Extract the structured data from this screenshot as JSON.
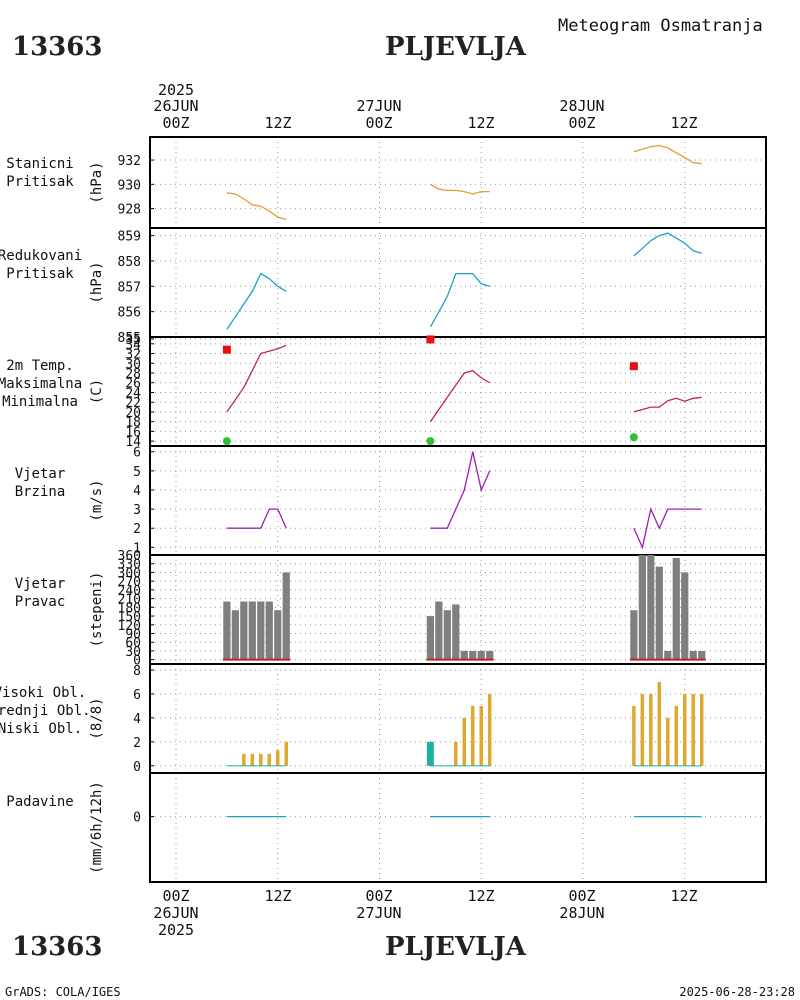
{
  "header": {
    "station_id": "13363",
    "station_name": "PLJEVLJA",
    "product_title": "Meteogram Osmatranja"
  },
  "footer": {
    "station_id": "13363",
    "station_name": "PLJEVLJA",
    "credit": "GrADS: COLA/IGES",
    "timestamp": "2025-06-28-23:28"
  },
  "time_axis": {
    "top": [
      {
        "year": "2025",
        "date": "26JUN",
        "hours": [
          "00Z",
          "12Z"
        ]
      },
      {
        "date": "27JUN",
        "hours": [
          "00Z",
          "12Z"
        ]
      },
      {
        "date": "28JUN",
        "hours": [
          "00Z",
          "12Z"
        ]
      }
    ],
    "bottom": [
      {
        "hour": "00Z",
        "date": "26JUN",
        "year": "2025"
      },
      {
        "hour": "12Z"
      },
      {
        "hour": "00Z",
        "date": "27JUN"
      },
      {
        "hour": "12Z"
      },
      {
        "hour": "00Z",
        "date": "28JUN"
      },
      {
        "hour": "12Z"
      }
    ]
  },
  "colors": {
    "station_pressure": "#e0a030",
    "reduced_pressure": "#20a0c0",
    "temperature": "#c0206a",
    "tmax": "#e81010",
    "tmin": "#30c030",
    "wind_speed": "#9b20b0",
    "wind_dir_bar": "#7f7f7f",
    "wind_dir_base": "#c02020",
    "high_cloud": "#20b0a0",
    "mid_cloud": "#30b0c0",
    "low_cloud": "#e0a830",
    "precip": "#20a0c0"
  },
  "chart_data": [
    {
      "type": "line",
      "name": "station-pressure",
      "title": "Stanicni Pritisak",
      "label_lines": [
        "Stanicni",
        "Pritisak"
      ],
      "ylabel": "(hPa)",
      "ylim": [
        926.4,
        933.9
      ],
      "yticks": [
        928,
        930,
        932
      ],
      "x_unit": "hours since 26JUN 00Z",
      "series": [
        {
          "name": "Stanicni Pritisak",
          "segments": [
            {
              "x": [
                6,
                7,
                8,
                9,
                10,
                11,
                12,
                13
              ],
              "y": [
                929.3,
                929.2,
                928.8,
                928.3,
                928.2,
                927.8,
                927.3,
                927.1
              ]
            },
            {
              "x": [
                30,
                31,
                32,
                33,
                34,
                35,
                36,
                37
              ],
              "y": [
                930.0,
                929.6,
                929.5,
                929.5,
                929.4,
                929.2,
                929.4,
                929.4
              ]
            },
            {
              "x": [
                54,
                55,
                56,
                57,
                58,
                59,
                60,
                61,
                62
              ],
              "y": [
                932.7,
                932.9,
                933.1,
                933.2,
                933.0,
                932.6,
                932.2,
                931.8,
                931.7
              ]
            }
          ]
        }
      ]
    },
    {
      "type": "line",
      "name": "reduced-pressure",
      "title": "Redukovani Pritisak",
      "label_lines": [
        "Redukovani",
        "Pritisak"
      ],
      "ylabel": "(hPa)",
      "ylim": [
        855.0,
        859.3
      ],
      "yticks": [
        855,
        856,
        857,
        858,
        859
      ],
      "ytick_labels": [
        "855",
        "856",
        "857",
        "858",
        "859"
      ],
      "x_unit": "hours since 26JUN 00Z",
      "series": [
        {
          "name": "Redukovani Pritisak",
          "segments": [
            {
              "x": [
                6,
                7,
                8,
                9,
                10,
                11,
                12,
                13
              ],
              "y": [
                855.3,
                855.8,
                856.3,
                856.8,
                857.5,
                857.3,
                857.0,
                856.8
              ]
            },
            {
              "x": [
                30,
                31,
                32,
                33,
                34,
                35,
                36,
                37
              ],
              "y": [
                855.4,
                856.0,
                856.6,
                857.5,
                857.5,
                857.5,
                857.1,
                857.0
              ]
            },
            {
              "x": [
                54,
                55,
                56,
                57,
                58,
                59,
                60,
                61,
                62
              ],
              "y": [
                858.2,
                858.5,
                858.8,
                859.0,
                859.1,
                858.9,
                858.7,
                858.4,
                858.3
              ]
            }
          ]
        }
      ]
    },
    {
      "type": "line",
      "name": "temperature",
      "title": "2m Temp. Maksimalna Minimalna",
      "label_lines": [
        "2m Temp.",
        "Maksimalna",
        "Minimalna"
      ],
      "ylabel": "(C)",
      "ylim": [
        13,
        35.4
      ],
      "yticks": [
        14,
        16,
        18,
        20,
        22,
        24,
        26,
        28,
        30,
        32,
        34,
        35
      ],
      "ytick_labels": [
        "14",
        "16",
        "18",
        "20",
        "22",
        "24",
        "26",
        "28",
        "30",
        "32",
        "34",
        "35"
      ],
      "x_unit": "hours since 26JUN 00Z",
      "series": [
        {
          "name": "2m Temp.",
          "segments": [
            {
              "x": [
                6,
                8,
                10,
                12,
                13
              ],
              "y": [
                20,
                25,
                32,
                33,
                33.7
              ]
            },
            {
              "x": [
                30,
                32,
                34,
                35,
                36,
                37
              ],
              "y": [
                18,
                23,
                28,
                28.5,
                27,
                26
              ]
            },
            {
              "x": [
                54,
                55,
                56,
                57,
                58,
                59,
                60,
                61,
                62
              ],
              "y": [
                20,
                20.5,
                21,
                21,
                22.3,
                22.8,
                22.2,
                22.8,
                23
              ]
            }
          ]
        },
        {
          "name": "Maksimalna",
          "points": [
            {
              "x": 6,
              "y": 32.8
            },
            {
              "x": 30,
              "y": 34.9
            },
            {
              "x": 54,
              "y": 29.4
            }
          ]
        },
        {
          "name": "Minimalna",
          "points": [
            {
              "x": 6,
              "y": 14
            },
            {
              "x": 30,
              "y": 14
            },
            {
              "x": 54,
              "y": 14.8
            }
          ]
        }
      ]
    },
    {
      "type": "line",
      "name": "wind-speed",
      "title": "Vjetar Brzina",
      "label_lines": [
        "Vjetar",
        "Brzina"
      ],
      "ylabel": "(m/s)",
      "ylim": [
        0.6,
        6.3
      ],
      "yticks": [
        1,
        2,
        3,
        4,
        5,
        6
      ],
      "x_unit": "hours since 26JUN 00Z",
      "series": [
        {
          "name": "Vjetar Brzina",
          "segments": [
            {
              "x": [
                6,
                7,
                8,
                9,
                10,
                11,
                12,
                13
              ],
              "y": [
                2,
                2,
                2,
                2,
                2,
                3,
                3,
                2
              ]
            },
            {
              "x": [
                30,
                31,
                32,
                33,
                34,
                35,
                36,
                37
              ],
              "y": [
                2,
                2,
                2,
                3,
                4,
                6,
                4,
                5
              ]
            },
            {
              "x": [
                54,
                55,
                56,
                57,
                58,
                59,
                60,
                61,
                62
              ],
              "y": [
                2,
                1,
                3,
                2,
                3,
                3,
                3,
                3,
                3
              ]
            }
          ]
        }
      ]
    },
    {
      "type": "bar",
      "name": "wind-direction",
      "title": "Vjetar Pravac",
      "label_lines": [
        "Vjetar",
        "Pravac"
      ],
      "ylabel": "(stepeni)",
      "ylim": [
        -15,
        360
      ],
      "yticks": [
        0,
        30,
        60,
        90,
        120,
        150,
        180,
        210,
        240,
        270,
        300,
        330,
        360
      ],
      "x_unit": "hours since 26JUN 00Z",
      "x": [
        6,
        7,
        8,
        9,
        10,
        11,
        12,
        13,
        30,
        31,
        32,
        33,
        34,
        35,
        36,
        37,
        54,
        55,
        56,
        57,
        58,
        59,
        60,
        61,
        62
      ],
      "values": [
        200,
        170,
        200,
        200,
        200,
        200,
        170,
        300,
        150,
        200,
        170,
        190,
        30,
        30,
        30,
        30,
        170,
        360,
        360,
        320,
        30,
        350,
        300,
        30,
        30
      ]
    },
    {
      "type": "bar",
      "name": "cloud-cover",
      "title": "Visoki Obl. Srednji Obl. Niski Obl.",
      "label_lines": [
        "Visoki Obl.",
        "Srednji Obl.",
        "Niski Obl."
      ],
      "ylabel": "(8/8)",
      "ylim": [
        -0.6,
        8.5
      ],
      "yticks": [
        0,
        2,
        4,
        6,
        8
      ],
      "x_unit": "hours since 26JUN 00Z",
      "series": [
        {
          "name": "Visoki Obl.",
          "x": [
            30
          ],
          "values": [
            2
          ]
        },
        {
          "name": "Srednji Obl.",
          "x": [
            34
          ],
          "values": [
            1
          ]
        },
        {
          "name": "Niski Obl.",
          "x": [
            8,
            9,
            10,
            11,
            12,
            13,
            33,
            34,
            35,
            36,
            37,
            54,
            55,
            56,
            57,
            58,
            59,
            60,
            61,
            62
          ],
          "values": [
            1,
            1,
            1,
            1,
            1.3,
            2,
            2,
            4,
            5,
            5,
            6,
            5,
            6,
            6,
            7,
            4,
            5,
            6,
            6,
            6
          ]
        }
      ]
    },
    {
      "type": "line",
      "name": "precipitation",
      "title": "Padavine",
      "label_lines": [
        "Padavine"
      ],
      "ylabel": "(mm/6h/12h)",
      "ylim": [
        -1.5,
        1
      ],
      "yticks": [
        0
      ],
      "x_unit": "hours since 26JUN 00Z",
      "series": [
        {
          "name": "Padavine",
          "segments": [
            {
              "x": [
                6,
                13
              ],
              "y": [
                0,
                0
              ]
            },
            {
              "x": [
                30,
                37
              ],
              "y": [
                0,
                0
              ]
            },
            {
              "x": [
                54,
                62
              ],
              "y": [
                0,
                0
              ]
            }
          ]
        }
      ]
    }
  ]
}
